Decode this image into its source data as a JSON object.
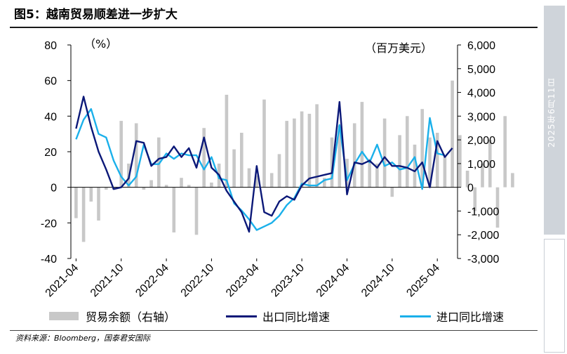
{
  "figure": {
    "title": "图5：越南贸易顺差进一步扩大",
    "source": "资料来源：Bloomberg，国泰君安国际",
    "side_date": "2025年6月11日"
  },
  "chart_data": {
    "type": "bar+line",
    "title": "越南贸易顺差进一步扩大",
    "left_axis": {
      "unit_label": "（%）",
      "ylim": [
        -40,
        80
      ],
      "ticks": [
        "80",
        "60",
        "40",
        "20",
        "0",
        "-20",
        "-40"
      ]
    },
    "right_axis": {
      "unit_label": "（百万美元）",
      "ylim": [
        -3000,
        6000
      ],
      "ticks": [
        "6,000",
        "5,000",
        "4,000",
        "3,000",
        "2,000",
        "1,000",
        "0",
        "-1,000",
        "-2,000",
        "-3,000"
      ]
    },
    "x_ticks": [
      "2021-04",
      "2021-10",
      "2022-04",
      "2022-10",
      "2023-04",
      "2023-10",
      "2024-04",
      "2024-10",
      "2025-04"
    ],
    "start_month": "2021-04",
    "series": [
      {
        "name": "贸易余额（右轴）",
        "type": "bar",
        "axis": "right",
        "color": "#c8c8c8",
        "values": [
          -1300,
          -2300,
          -600,
          -1400,
          -100,
          -100,
          2800,
          1000,
          2700,
          -100,
          300,
          2100,
          100,
          -1900,
          400,
          100,
          -2000,
          2500,
          200,
          1000,
          3900,
          1600,
          2300,
          800,
          500,
          3700,
          600,
          1400,
          2800,
          2900,
          3200,
          3100,
          3500,
          400,
          2100,
          2600,
          1200,
          2700,
          3600,
          1200,
          1000,
          2900,
          -400,
          2200,
          3000,
          1800,
          3300,
          2100,
          2300,
          1300,
          4500,
          2200,
          700,
          -1000,
          1000,
          2000,
          -1700,
          3000,
          600
        ]
      },
      {
        "name": "出口同比增速",
        "type": "line",
        "axis": "left",
        "color": "#0b1878",
        "values": [
          33,
          51,
          34,
          20,
          10,
          -1,
          0,
          5,
          26,
          25,
          12,
          16,
          17,
          23,
          17,
          22,
          11,
          28,
          11,
          7,
          -2,
          -8,
          -14,
          -25,
          12,
          -14,
          -16,
          -8,
          -5,
          -7,
          1,
          5,
          6,
          7,
          8,
          48,
          -4,
          14,
          13,
          15,
          11,
          17,
          12,
          12,
          11,
          9,
          14,
          0,
          26,
          17,
          22
        ]
      },
      {
        "name": "进口同比增速",
        "type": "line",
        "axis": "left",
        "color": "#1ab0ea",
        "values": [
          27,
          38,
          44,
          30,
          28,
          15,
          6,
          1,
          6,
          24,
          13,
          13,
          19,
          16,
          19,
          18,
          18,
          10,
          17,
          5,
          4,
          -9,
          -13,
          -18,
          -24,
          -22,
          -20,
          -16,
          -10,
          -6,
          2,
          1,
          1,
          4,
          5,
          35,
          4,
          13,
          20,
          14,
          24,
          12,
          14,
          10,
          11,
          17,
          -1,
          39,
          19,
          18
        ]
      }
    ]
  },
  "legend": [
    {
      "label": "贸易余额（右轴）",
      "kind": "bar",
      "color": "#c8c8c8"
    },
    {
      "label": "出口同比增速",
      "kind": "line",
      "color": "#0b1878"
    },
    {
      "label": "进口同比增速",
      "kind": "line",
      "color": "#1ab0ea"
    }
  ]
}
